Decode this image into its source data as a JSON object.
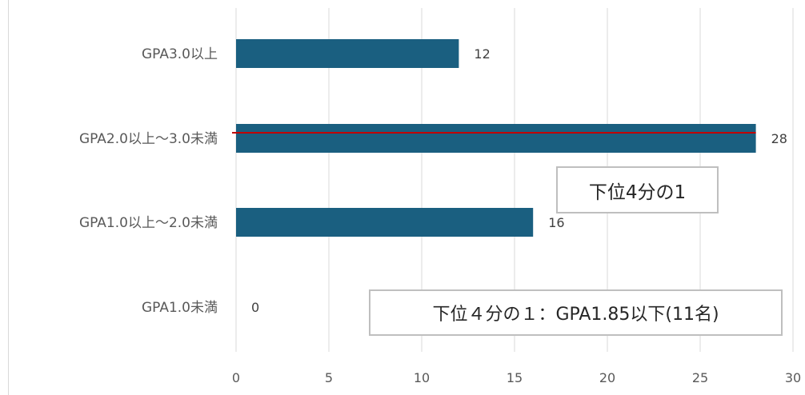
{
  "chart_data": {
    "type": "bar",
    "orientation": "horizontal",
    "categories": [
      "GPA3.0以上",
      "GPA2.0以上～3.0未満",
      "GPA1.0以上～2.0未満",
      "GPA1.0未満"
    ],
    "values": [
      12,
      28,
      16,
      0
    ],
    "data_labels": [
      "12",
      "28",
      "16",
      "0"
    ],
    "xlim": [
      0,
      30
    ],
    "x_ticks": [
      "0",
      "5",
      "10",
      "15",
      "20",
      "25",
      "30"
    ],
    "x_tick_values": [
      0,
      5,
      10,
      15,
      20,
      25,
      30
    ],
    "grid": true,
    "bar_color": "#1a5f80",
    "reference_line": {
      "color": "#c00000",
      "value": 28,
      "category_index": 1
    },
    "annotations": [
      {
        "id": "quartile_box",
        "text": "下位4分の1"
      },
      {
        "id": "summary_box",
        "text": "下位４分の１：GPA1.85以下(11名)"
      }
    ]
  },
  "colors": {
    "bar": "#1a5f80",
    "grid": "#d9d9d9",
    "text": "#595959",
    "reference_line": "#c00000",
    "box_border": "#bfbfbf"
  }
}
